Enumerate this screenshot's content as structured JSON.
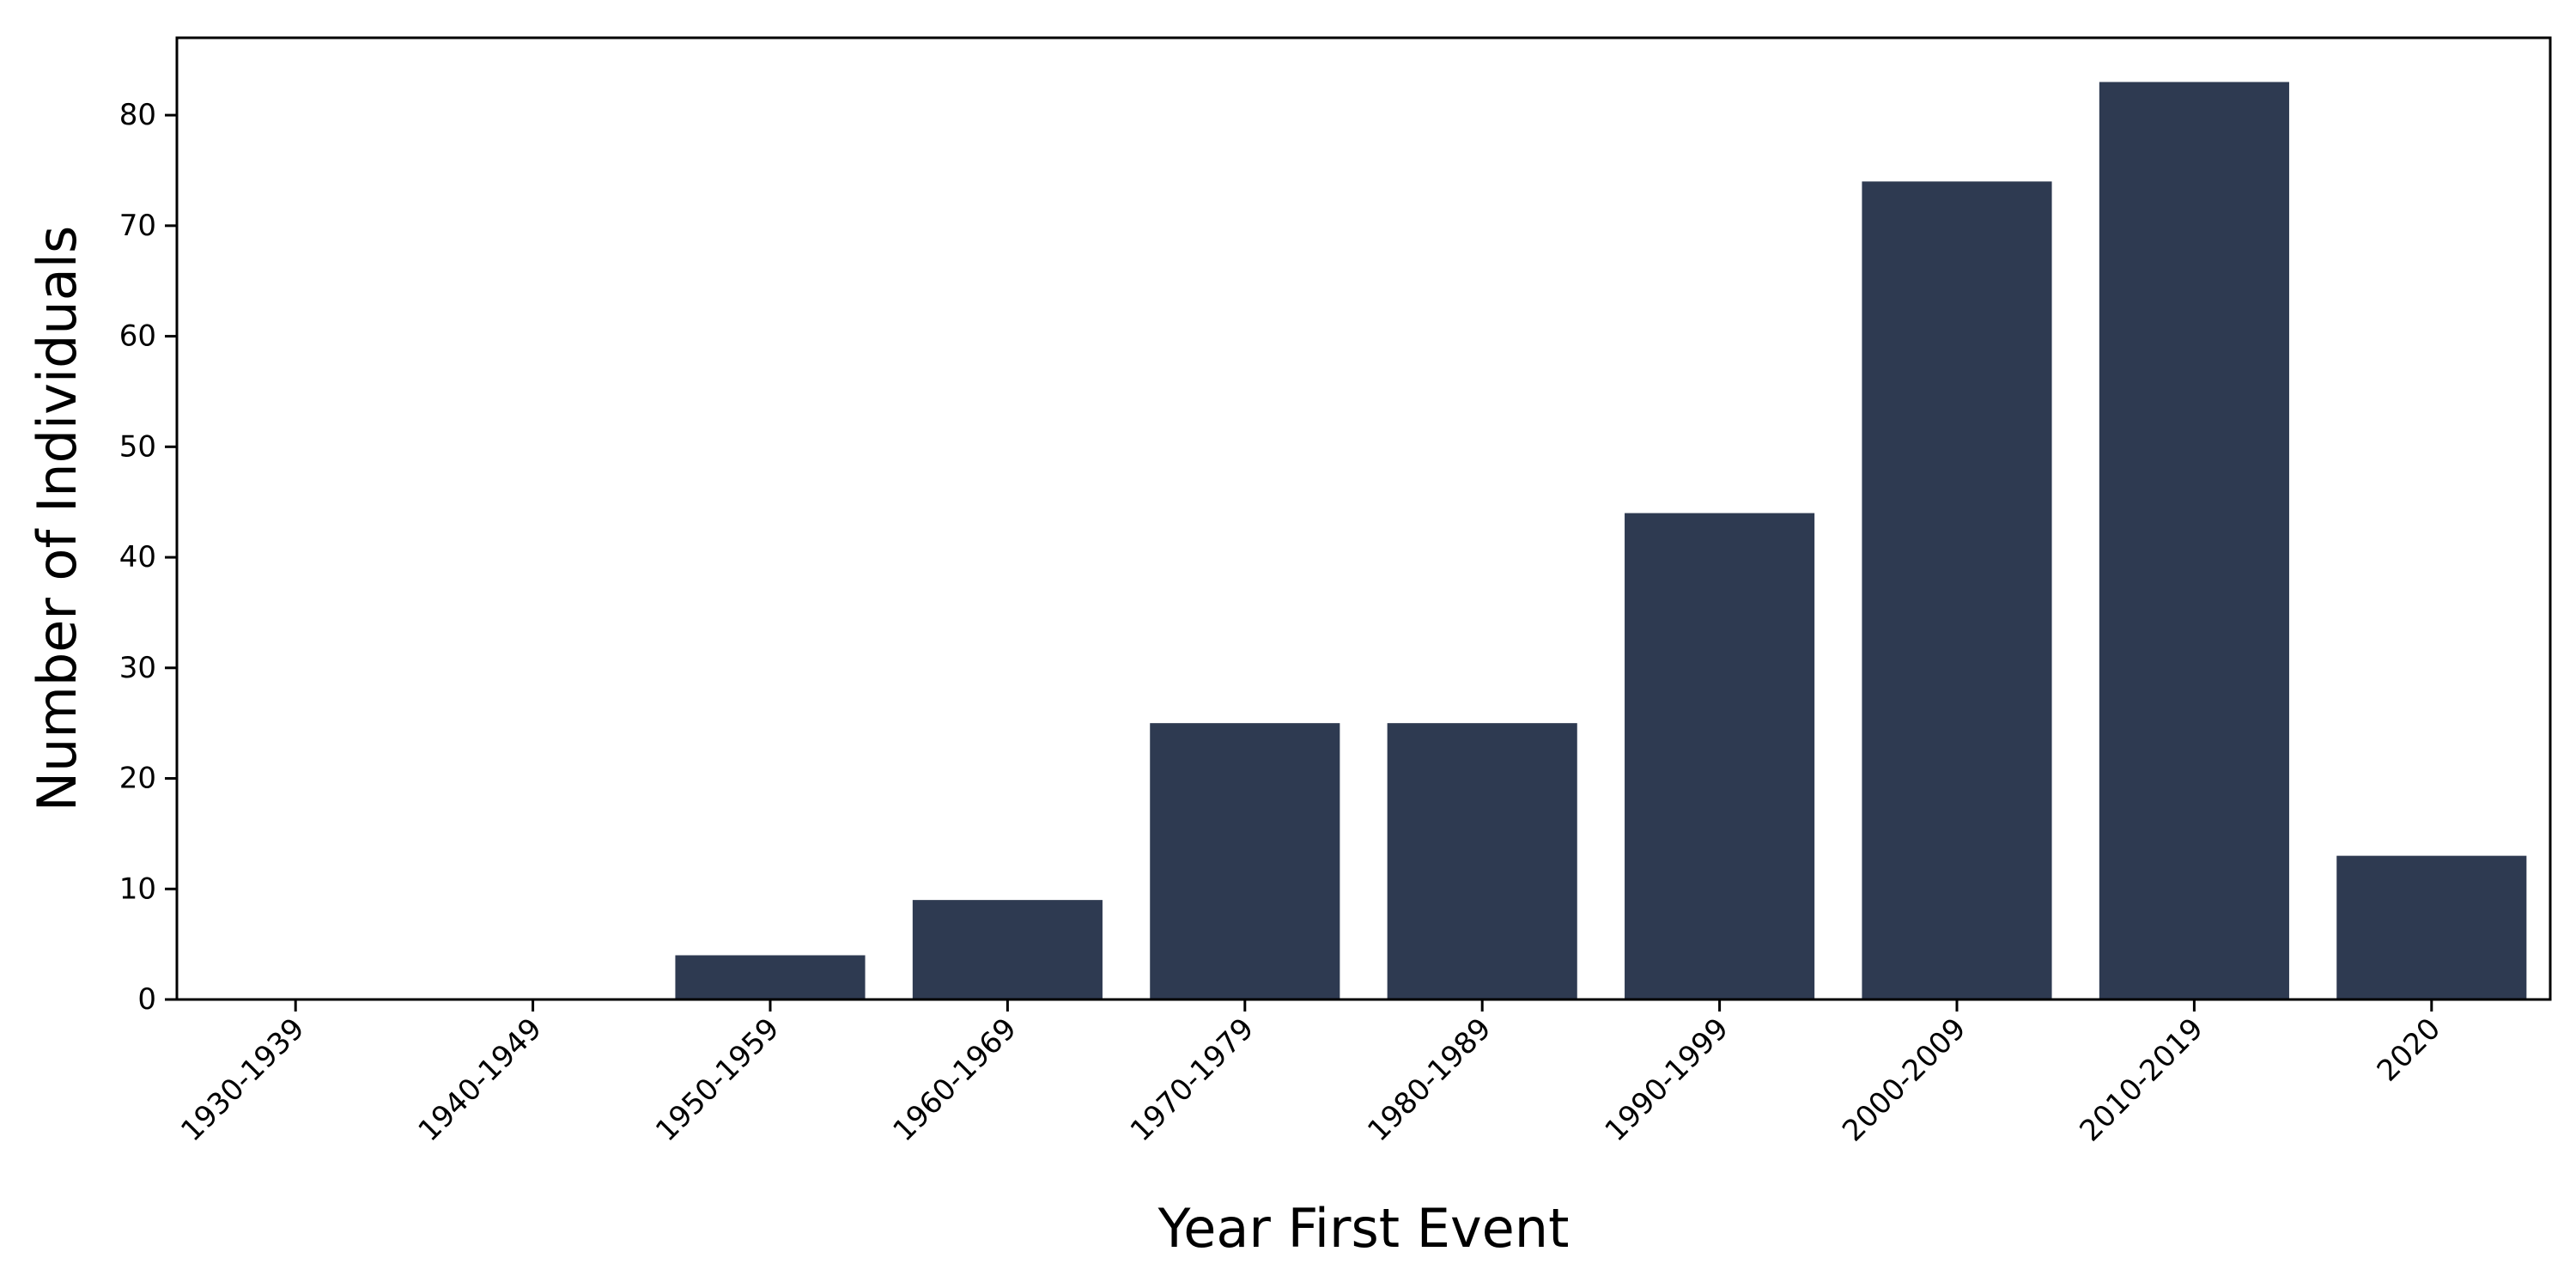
{
  "chart_data": {
    "type": "bar",
    "title": "",
    "xlabel": "Year First Event",
    "ylabel": "Number of Individuals",
    "categories": [
      "1930-1939",
      "1940-1949",
      "1950-1959",
      "1960-1969",
      "1970-1979",
      "1980-1989",
      "1990-1999",
      "2000-2009",
      "2010-2019",
      "2020"
    ],
    "values": [
      0,
      0,
      4,
      9,
      25,
      25,
      44,
      74,
      83,
      13
    ],
    "ylim": [
      0,
      87
    ],
    "yticks": [
      0,
      10,
      20,
      30,
      40,
      50,
      60,
      70,
      80
    ],
    "grid": false,
    "legend": "none",
    "bar_color": "#2e3a51"
  }
}
